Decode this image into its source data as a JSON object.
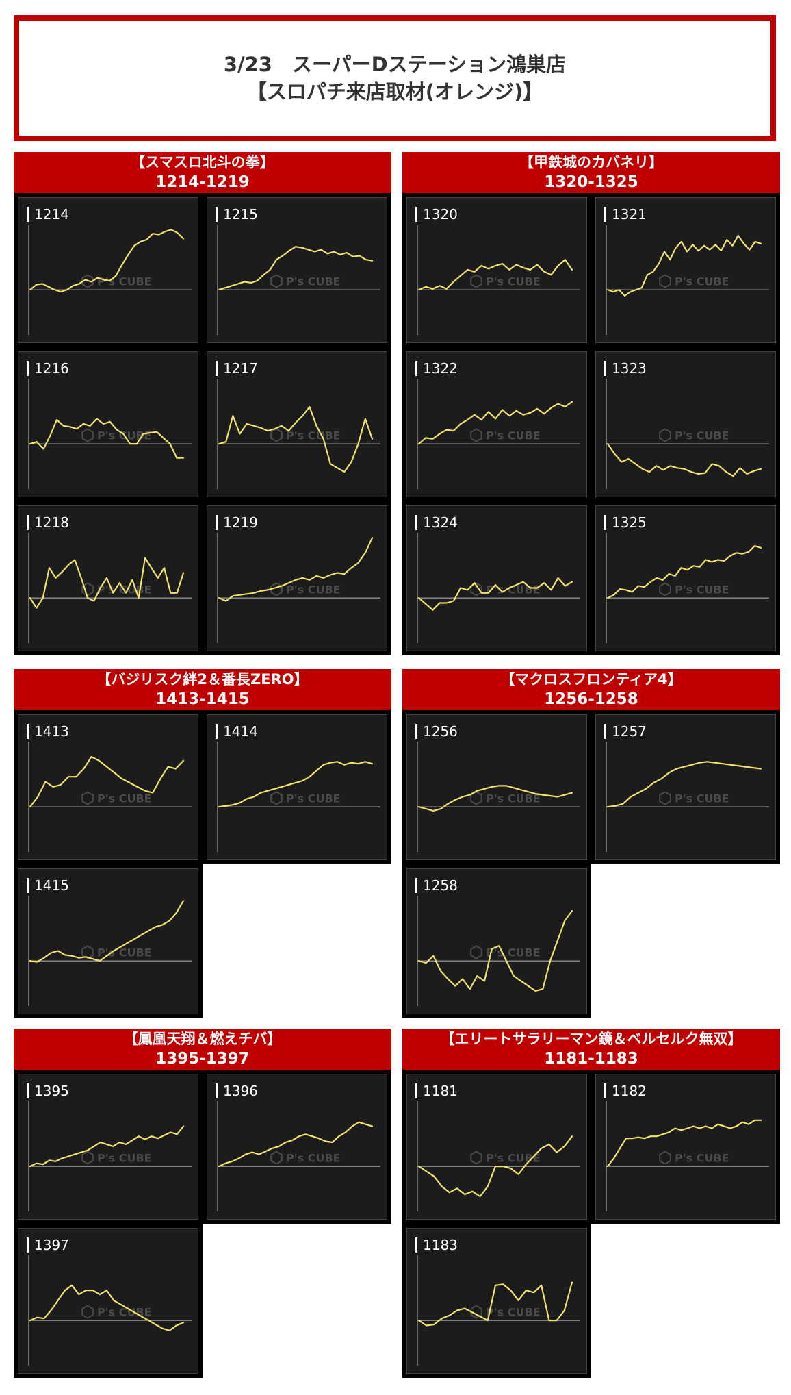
{
  "header": {
    "line1": "3/23　スーパーDステーション鴻巣店",
    "line2": "【スロパチ来店取材(オレンジ)】"
  },
  "watermark": {
    "text": "P's CUBE"
  },
  "colors": {
    "accent": "#c00000",
    "line": "#f2e26c",
    "panel": "#1c1c1c",
    "frame": "#000000"
  },
  "chart_data": [
    {
      "type": "line",
      "group": "【スマスロ北斗の拳】",
      "range": "1214-1219",
      "machines": [
        {
          "name": "1214",
          "values": [
            0,
            5,
            6,
            3,
            0,
            -2,
            0,
            4,
            6,
            10,
            8,
            12,
            10,
            9,
            14,
            25,
            35,
            44,
            48,
            50,
            56,
            55,
            58,
            60,
            57,
            51
          ]
        },
        {
          "name": "1215",
          "values": [
            0,
            2,
            4,
            6,
            8,
            7,
            9,
            15,
            20,
            30,
            34,
            39,
            43,
            42,
            40,
            38,
            40,
            36,
            38,
            35,
            37,
            33,
            34,
            30,
            29
          ]
        },
        {
          "name": "1216",
          "values": [
            0,
            2,
            -5,
            8,
            24,
            18,
            17,
            15,
            20,
            18,
            25,
            20,
            22,
            14,
            10,
            0,
            0,
            10,
            11,
            12,
            6,
            0,
            -14,
            -14
          ]
        },
        {
          "name": "1217",
          "values": [
            0,
            2,
            28,
            10,
            20,
            18,
            16,
            13,
            15,
            18,
            13,
            21,
            28,
            37,
            18,
            5,
            -20,
            -24,
            -28,
            -18,
            0,
            25,
            5
          ]
        },
        {
          "name": "1218",
          "values": [
            0,
            -10,
            0,
            30,
            20,
            26,
            33,
            38,
            20,
            0,
            -3,
            10,
            20,
            5,
            15,
            5,
            18,
            0,
            40,
            30,
            20,
            30,
            5,
            5,
            25
          ]
        },
        {
          "name": "1219",
          "values": [
            0,
            -3,
            2,
            3,
            4,
            5,
            7,
            8,
            10,
            12,
            15,
            18,
            20,
            18,
            22,
            20,
            23,
            25,
            24,
            30,
            35,
            45,
            60
          ]
        }
      ]
    },
    {
      "type": "line",
      "group": "【甲鉄城のカバネリ】",
      "range": "1320-1325",
      "machines": [
        {
          "name": "1320",
          "values": [
            0,
            3,
            1,
            4,
            1,
            8,
            14,
            20,
            18,
            24,
            21,
            24,
            26,
            20,
            25,
            22,
            20,
            25,
            18,
            15,
            24,
            30,
            20
          ]
        },
        {
          "name": "1321",
          "values": [
            0,
            -2,
            0,
            -6,
            -2,
            0,
            2,
            15,
            18,
            26,
            38,
            30,
            42,
            48,
            38,
            45,
            39,
            44,
            40,
            45,
            39,
            50,
            44,
            54,
            46,
            40,
            48,
            46
          ]
        },
        {
          "name": "1322",
          "values": [
            0,
            6,
            5,
            10,
            14,
            13,
            20,
            24,
            29,
            24,
            32,
            25,
            34,
            28,
            33,
            29,
            31,
            35,
            30,
            36,
            40,
            37,
            42
          ]
        },
        {
          "name": "1323",
          "values": [
            0,
            -10,
            -18,
            -15,
            -20,
            -25,
            -28,
            -22,
            -26,
            -22,
            -24,
            -25,
            -28,
            -30,
            -29,
            -20,
            -22,
            -28,
            -32,
            -24,
            -30,
            -27,
            -25
          ]
        },
        {
          "name": "1324",
          "values": [
            0,
            -6,
            -12,
            -5,
            -5,
            -3,
            10,
            8,
            15,
            5,
            5,
            13,
            6,
            10,
            13,
            16,
            10,
            10,
            15,
            8,
            20,
            12,
            16
          ]
        },
        {
          "name": "1325",
          "values": [
            0,
            3,
            9,
            8,
            6,
            12,
            11,
            16,
            20,
            18,
            24,
            22,
            30,
            28,
            32,
            31,
            38,
            36,
            38,
            37,
            42,
            45,
            44,
            46,
            52,
            50
          ]
        }
      ]
    },
    {
      "type": "line",
      "group": "【バジリスク絆2＆番長ZERO】",
      "range": "1413-1415",
      "machines": [
        {
          "name": "1413",
          "values": [
            0,
            10,
            25,
            20,
            22,
            30,
            30,
            38,
            50,
            46,
            40,
            34,
            28,
            24,
            20,
            16,
            14,
            28,
            40,
            38,
            46
          ]
        },
        {
          "name": "1414",
          "values": [
            0,
            1,
            2,
            4,
            8,
            10,
            14,
            16,
            18,
            20,
            22,
            24,
            26,
            30,
            36,
            42,
            44,
            45,
            42,
            44,
            43,
            45,
            43
          ]
        },
        {
          "name": "1415",
          "values": [
            0,
            -1,
            3,
            8,
            10,
            6,
            5,
            3,
            4,
            2,
            0,
            5,
            10,
            14,
            18,
            22,
            26,
            30,
            34,
            36,
            40,
            48,
            60
          ]
        }
      ]
    },
    {
      "type": "line",
      "group": "【マクロスフロンティア4】",
      "range": "1256-1258",
      "machines": [
        {
          "name": "1256",
          "values": [
            0,
            -2,
            -4,
            -2,
            3,
            7,
            10,
            12,
            16,
            18,
            20,
            21,
            21,
            19,
            17,
            15,
            13,
            12,
            11,
            10,
            12,
            14
          ]
        },
        {
          "name": "1257",
          "values": [
            0,
            1,
            3,
            10,
            14,
            18,
            24,
            28,
            34,
            38,
            40,
            42,
            44,
            45,
            44,
            43,
            42,
            41,
            40,
            39,
            38
          ]
        },
        {
          "name": "1258",
          "values": [
            0,
            -2,
            5,
            -10,
            -18,
            -25,
            -18,
            -28,
            -15,
            -20,
            12,
            15,
            0,
            -15,
            -20,
            -25,
            -30,
            -28,
            0,
            20,
            40,
            50
          ]
        }
      ]
    },
    {
      "type": "line",
      "group": "【鳳凰天翔＆燃えチバ】",
      "range": "1395-1397",
      "machines": [
        {
          "name": "1395",
          "values": [
            0,
            3,
            2,
            6,
            5,
            8,
            10,
            12,
            14,
            16,
            20,
            24,
            22,
            20,
            24,
            22,
            26,
            30,
            27,
            30,
            28,
            31,
            34,
            32,
            40
          ]
        },
        {
          "name": "1396",
          "values": [
            0,
            3,
            5,
            8,
            12,
            14,
            12,
            15,
            18,
            20,
            24,
            26,
            30,
            32,
            30,
            28,
            25,
            24,
            30,
            34,
            40,
            44,
            42,
            40
          ]
        },
        {
          "name": "1397",
          "values": [
            0,
            3,
            2,
            10,
            20,
            30,
            35,
            26,
            30,
            30,
            26,
            30,
            20,
            16,
            12,
            8,
            4,
            0,
            -4,
            -8,
            -10,
            -5,
            -2
          ]
        }
      ]
    },
    {
      "type": "line",
      "group": "【エリートサラリーマン鏡＆ベルセルク無双】",
      "range": "1181-1183",
      "machines": [
        {
          "name": "1181",
          "values": [
            0,
            -5,
            -10,
            -20,
            -26,
            -22,
            -28,
            -25,
            -30,
            -20,
            0,
            0,
            -2,
            -8,
            2,
            10,
            18,
            22,
            14,
            20,
            30
          ]
        },
        {
          "name": "1182",
          "values": [
            0,
            8,
            18,
            28,
            28,
            29,
            28,
            30,
            30,
            32,
            34,
            38,
            36,
            38,
            40,
            38,
            40,
            38,
            42,
            40,
            38,
            40,
            44,
            42,
            46,
            46
          ]
        },
        {
          "name": "1183",
          "values": [
            0,
            -5,
            -4,
            2,
            5,
            10,
            12,
            8,
            4,
            0,
            35,
            36,
            30,
            20,
            30,
            28,
            35,
            0,
            0,
            10,
            38
          ]
        }
      ]
    }
  ]
}
